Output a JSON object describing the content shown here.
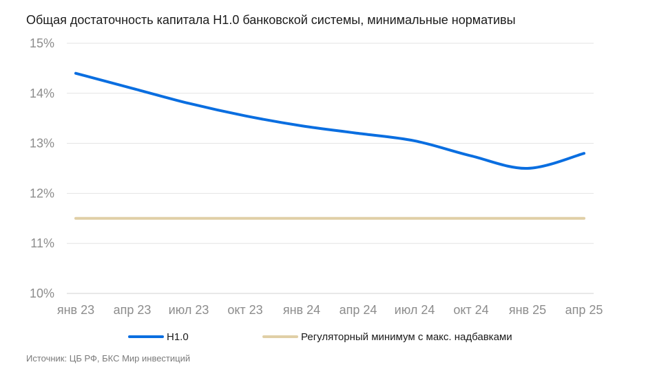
{
  "chart_data": {
    "type": "line",
    "title": "Общая достаточность капитала Н1.0 банковской системы, минимальные нормативы",
    "xlabel": "",
    "ylabel": "",
    "x_tick_labels": [
      "янв 23",
      "апр 23",
      "июл 23",
      "окт 23",
      "янв 24",
      "апр 24",
      "июл 24",
      "окт 24",
      "янв 25",
      "апр 25"
    ],
    "y_tick_labels": [
      "10%",
      "11%",
      "12%",
      "13%",
      "14%",
      "15%"
    ],
    "ylim": [
      10,
      15
    ],
    "grid": true,
    "legend_position": "bottom",
    "series": [
      {
        "name": "Н1.0",
        "color": "#0a6ee0",
        "values": [
          14.4,
          14.1,
          13.8,
          13.55,
          13.35,
          13.2,
          13.05,
          12.75,
          12.5,
          12.8
        ]
      },
      {
        "name": "Регуляторный минимум с макс. надбавками",
        "color": "#e0cfa6",
        "values": [
          11.5,
          11.5,
          11.5,
          11.5,
          11.5,
          11.5,
          11.5,
          11.5,
          11.5,
          11.5
        ]
      }
    ]
  },
  "source_text": "Источник: ЦБ РФ, БКС Мир инвестиций"
}
